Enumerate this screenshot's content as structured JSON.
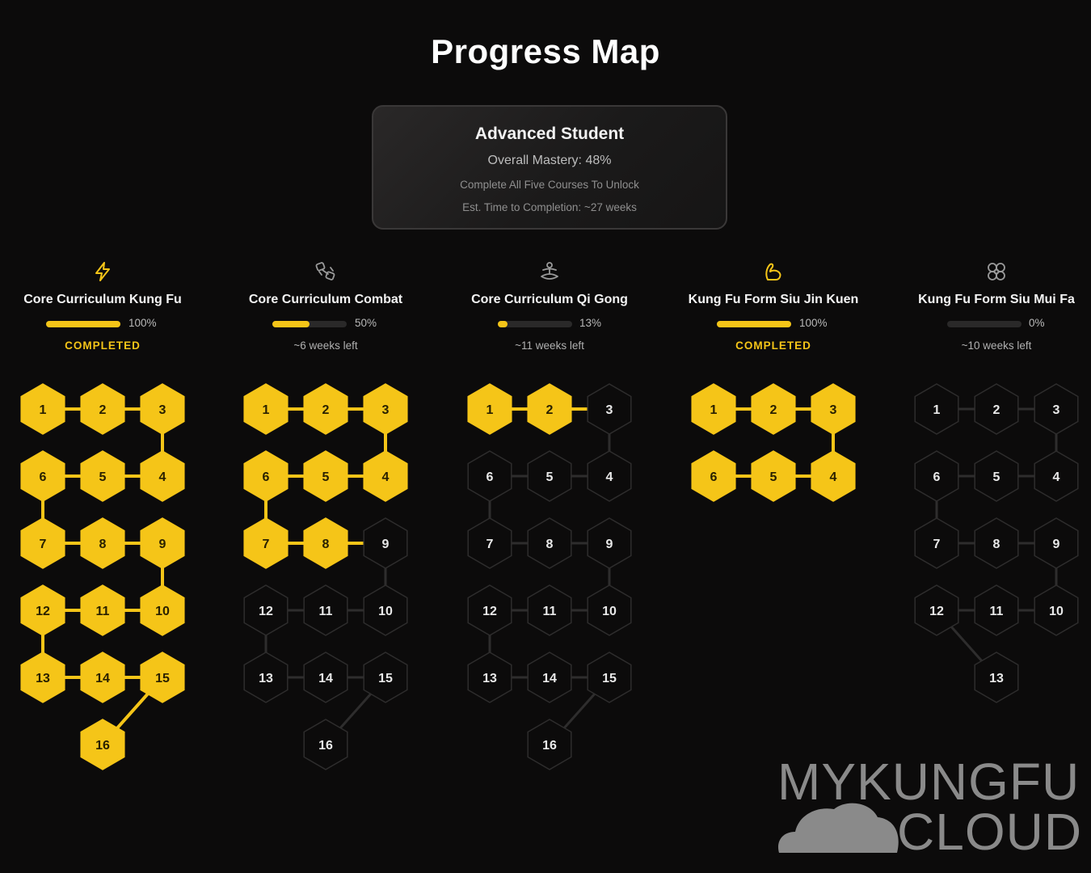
{
  "page": {
    "title": "Progress Map"
  },
  "summary": {
    "rank": "Advanced Student",
    "mastery": "Overall Mastery: 48%",
    "unlock": "Complete All Five Courses To Unlock",
    "eta": "Est. Time to Completion: ~27 weeks"
  },
  "colors": {
    "accent": "#f5c518",
    "locked_fill": "#0c0b0b",
    "locked_stroke": "#2e2d2d",
    "background": "#0c0b0b"
  },
  "courses": [
    {
      "name": "Core Curriculum Kung Fu",
      "icon": "lightning-icon",
      "progress": 1.0,
      "percent_label": "100%",
      "status": "COMPLETED",
      "completed": true,
      "lessons": 16,
      "unlocked": 16
    },
    {
      "name": "Core Curriculum Combat",
      "icon": "sparring-icon",
      "progress": 0.5,
      "percent_label": "50%",
      "status": "~6 weeks left",
      "completed": false,
      "lessons": 16,
      "unlocked": 8
    },
    {
      "name": "Core Curriculum Qi Gong",
      "icon": "meditation-icon",
      "progress": 0.13,
      "percent_label": "13%",
      "status": "~11 weeks left",
      "completed": false,
      "lessons": 16,
      "unlocked": 2
    },
    {
      "name": "Kung Fu Form Siu Jin Kuen",
      "icon": "flexed-arm-icon",
      "progress": 1.0,
      "percent_label": "100%",
      "status": "COMPLETED",
      "completed": true,
      "lessons": 6,
      "unlocked": 6
    },
    {
      "name": "Kung Fu Form Siu Mui Fa",
      "icon": "plum-blossom-icon",
      "progress": 0.0,
      "percent_label": "0%",
      "status": "~10 weeks left",
      "completed": false,
      "lessons": 13,
      "unlocked": 0
    }
  ],
  "logo": {
    "line1": "MYKUNGFU",
    "line2": "CLOUD"
  }
}
